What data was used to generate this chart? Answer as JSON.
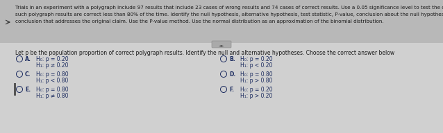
{
  "bg_color": "#c8c8c8",
  "header_bg": "#b8b8b8",
  "body_bg": "#d0d0d0",
  "header_text_line1": "Trials in an experiment with a polygraph include 97 results that include 23 cases of wrong results and 74 cases of correct results. Use a 0.05 significance level to test the claim that",
  "header_text_line2": "such polygraph results are correct less than 80% of the time. Identify the null hypothesis, alternative hypothesis, test statistic, P-value, conclusion about the null hypothesis, and final",
  "header_text_line3": "conclusion that addresses the original claim. Use the P-value method. Use the normal distribution as an approximation of the binomial distribution.",
  "subtext": "Let p be the population proportion of correct polygraph results. Identify the null and alternative hypotheses. Choose the correct answer below",
  "options_left": [
    {
      "label": "A.",
      "line1": "H₀: p = 0.20",
      "line2": "H₁: p ≠ 0.20"
    },
    {
      "label": "C.",
      "line1": "H₀: p = 0.80",
      "line2": "H₁: p < 0.80"
    },
    {
      "label": "E.",
      "line1": "H₀: p = 0.80",
      "line2": "H₁: p ≠ 0.80"
    }
  ],
  "options_right": [
    {
      "label": "B.",
      "line1": "H₀: p = 0.20",
      "line2": "H₁: p < 0.20"
    },
    {
      "label": "D.",
      "line1": "H₀: p = 0.80",
      "line2": "H₁: p > 0.80"
    },
    {
      "label": "F.",
      "line1": "H₀: p = 0.20",
      "line2": "H₁: p > 0.20"
    }
  ],
  "text_color": "#1a1a1a",
  "option_color": "#1a2a5e",
  "header_font_size": 5.2,
  "sub_font_size": 5.5,
  "option_font_size": 5.5,
  "arrow_color": "#333333"
}
